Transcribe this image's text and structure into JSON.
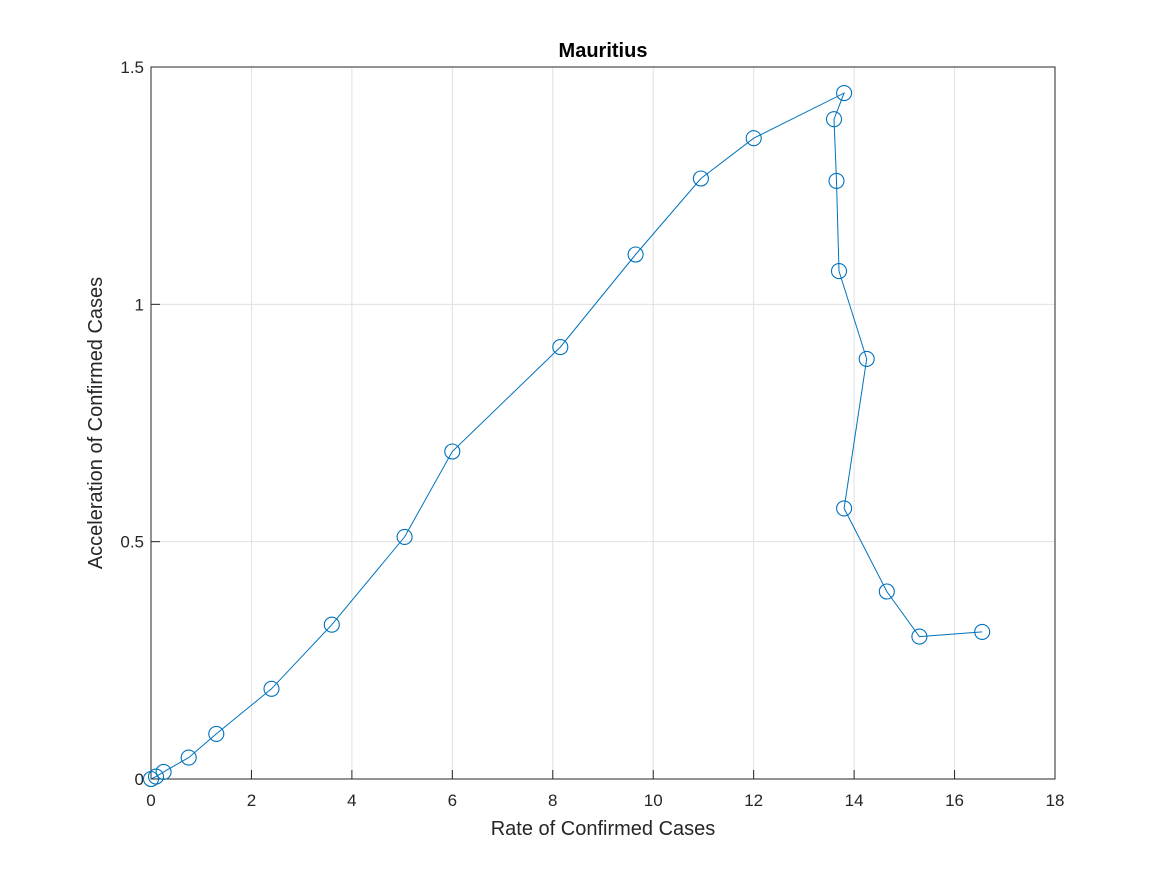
{
  "chart_data": {
    "type": "line",
    "title": "Mauritius",
    "xlabel": "Rate of Confirmed Cases",
    "ylabel": "Acceleration of Confirmed Cases",
    "xlim": [
      0,
      18
    ],
    "ylim": [
      0,
      1.5
    ],
    "xticks": [
      "0",
      "2",
      "4",
      "6",
      "8",
      "10",
      "12",
      "14",
      "16",
      "18"
    ],
    "yticks": [
      "0",
      "0.5",
      "1",
      "1.5"
    ],
    "grid": true,
    "marker": "circle",
    "color": "#0072BD",
    "series": [
      {
        "x": [
          0,
          0.1,
          0.25,
          0.75,
          1.3,
          2.4,
          3.6,
          5.05,
          6.0,
          8.15,
          9.65,
          10.95,
          12.0,
          13.8,
          13.6,
          13.65,
          13.7,
          14.25,
          13.8,
          14.65,
          15.3,
          16.55
        ],
        "y": [
          0,
          0.005,
          0.015,
          0.045,
          0.095,
          0.19,
          0.325,
          0.51,
          0.69,
          0.91,
          1.105,
          1.265,
          1.35,
          1.445,
          1.39,
          1.26,
          1.07,
          0.885,
          0.57,
          0.395,
          0.3,
          0.31
        ]
      }
    ]
  }
}
